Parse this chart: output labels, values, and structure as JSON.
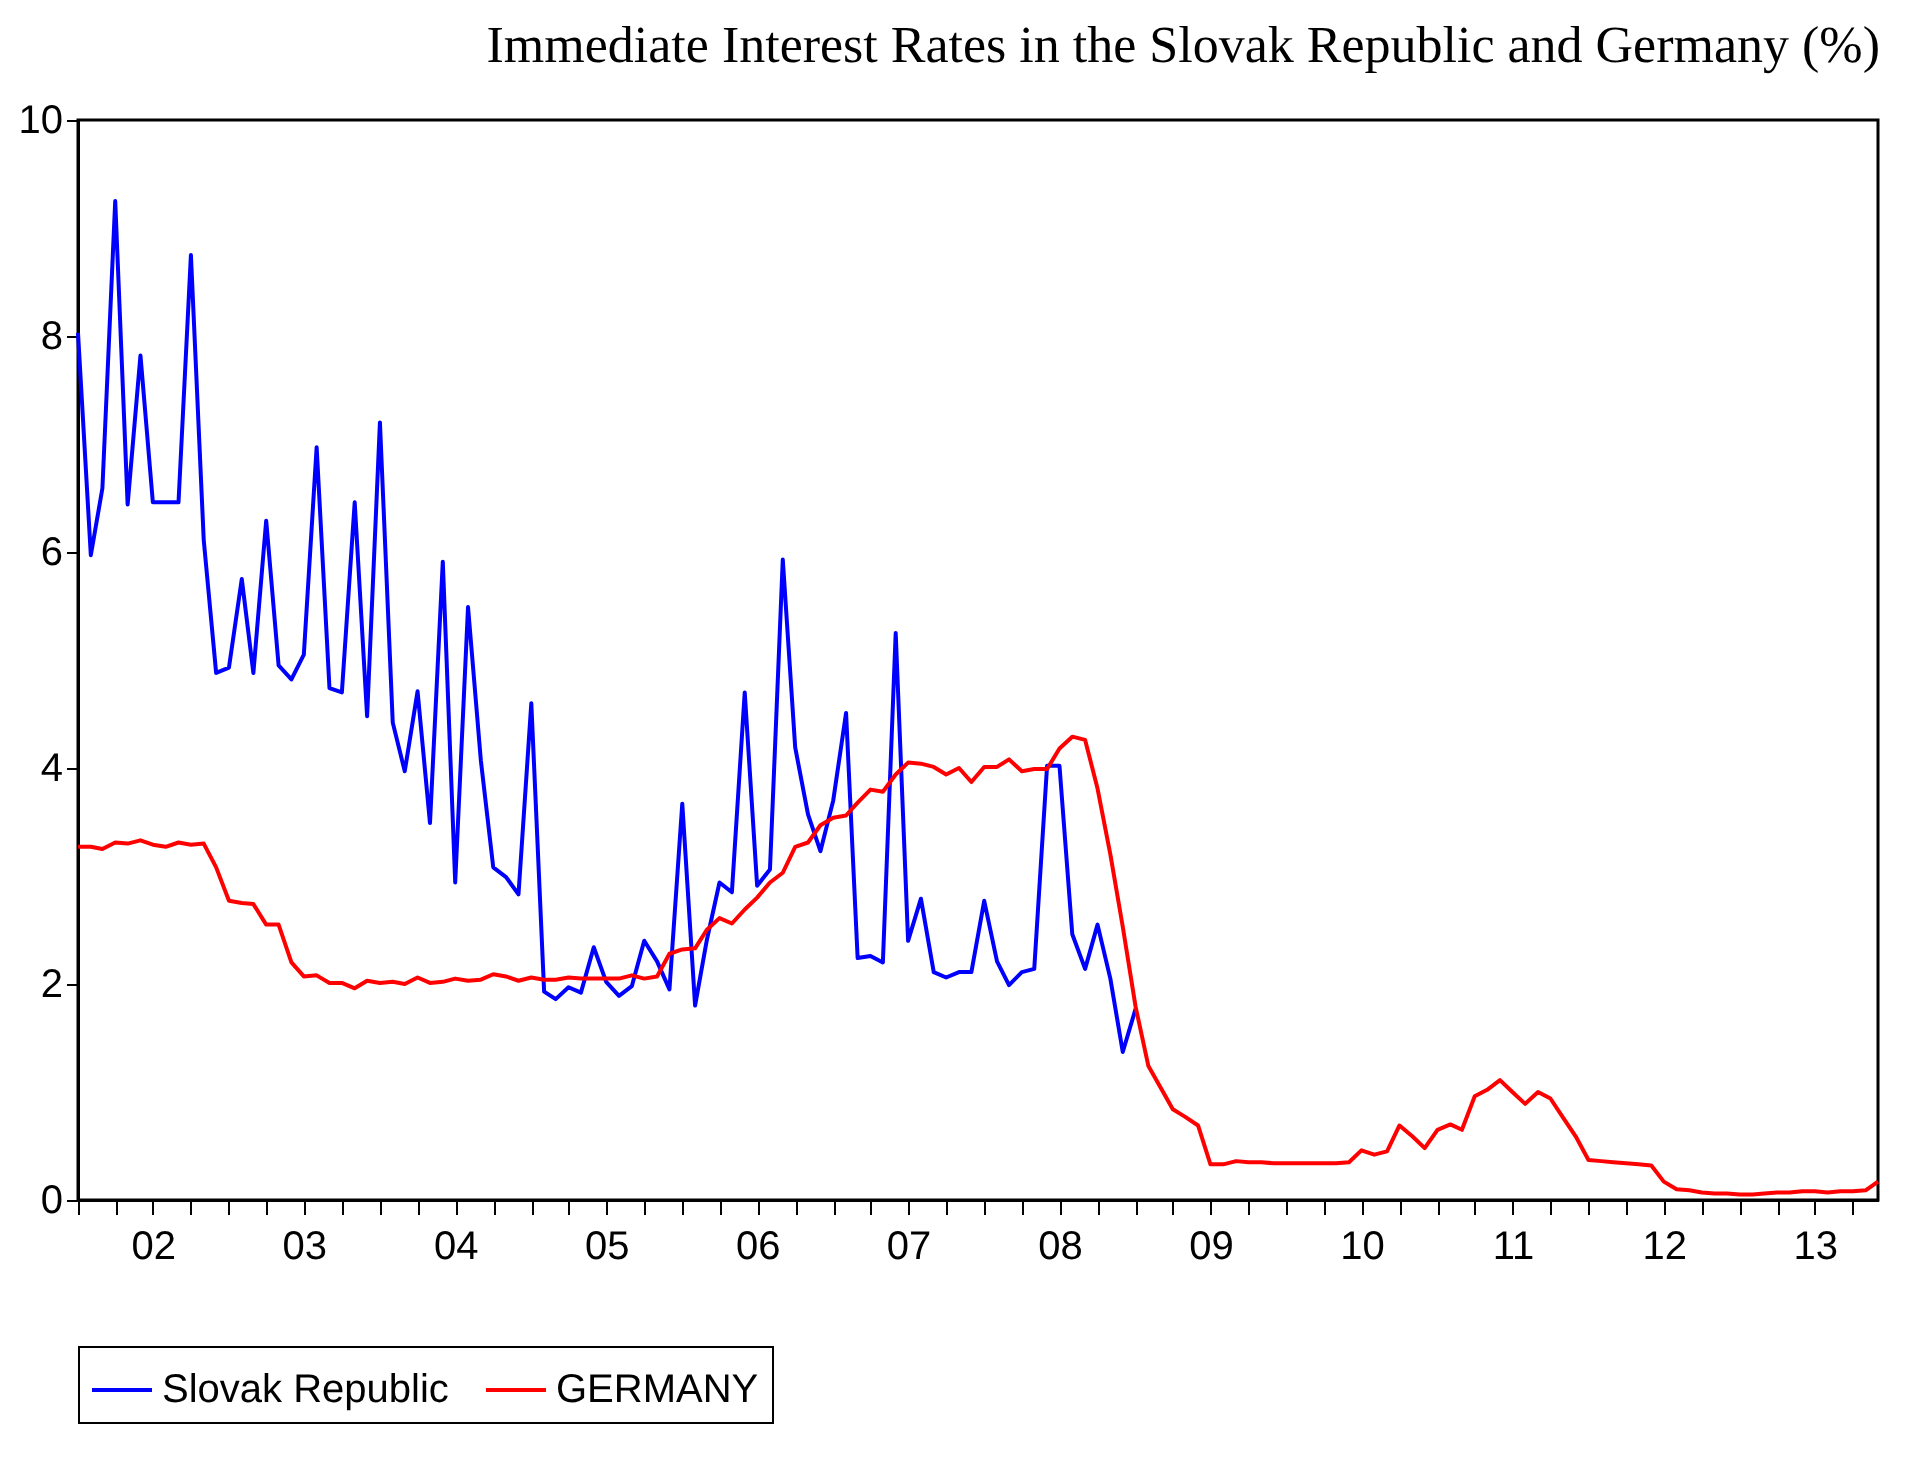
{
  "chart_data": {
    "type": "line",
    "title": "Immediate Interest Rates in the Slovak Republic and Germany (%)",
    "x": [
      "2002-01",
      "2002-02",
      "2002-03",
      "2002-04",
      "2002-05",
      "2002-06",
      "2002-07",
      "2002-08",
      "2002-09",
      "2002-10",
      "2002-11",
      "2002-12",
      "2003-01",
      "2003-02",
      "2003-03",
      "2003-04",
      "2003-05",
      "2003-06",
      "2003-07",
      "2003-08",
      "2003-09",
      "2003-10",
      "2003-11",
      "2003-12",
      "2004-01",
      "2004-02",
      "2004-03",
      "2004-04",
      "2004-05",
      "2004-06",
      "2004-07",
      "2004-08",
      "2004-09",
      "2004-10",
      "2004-11",
      "2004-12",
      "2005-01",
      "2005-02",
      "2005-03",
      "2005-04",
      "2005-05",
      "2005-06",
      "2005-07",
      "2005-08",
      "2005-09",
      "2005-10",
      "2005-11",
      "2005-12",
      "2006-01",
      "2006-02",
      "2006-03",
      "2006-04",
      "2006-05",
      "2006-06",
      "2006-07",
      "2006-08",
      "2006-09",
      "2006-10",
      "2006-11",
      "2006-12",
      "2007-01",
      "2007-02",
      "2007-03",
      "2007-04",
      "2007-05",
      "2007-06",
      "2007-07",
      "2007-08",
      "2007-09",
      "2007-10",
      "2007-11",
      "2007-12",
      "2008-01",
      "2008-02",
      "2008-03",
      "2008-04",
      "2008-05",
      "2008-06",
      "2008-07",
      "2008-08",
      "2008-09",
      "2008-10",
      "2008-11",
      "2008-12",
      "2009-01",
      "2009-02",
      "2009-03",
      "2009-04",
      "2009-05",
      "2009-06",
      "2009-07",
      "2009-08",
      "2009-09",
      "2009-10",
      "2009-11",
      "2009-12",
      "2010-01",
      "2010-02",
      "2010-03",
      "2010-04",
      "2010-05",
      "2010-06",
      "2010-07",
      "2010-08",
      "2010-09",
      "2010-10",
      "2010-11",
      "2010-12",
      "2011-01",
      "2011-02",
      "2011-03",
      "2011-04",
      "2011-05",
      "2011-06",
      "2011-07",
      "2011-08",
      "2011-09",
      "2011-10",
      "2011-11",
      "2011-12",
      "2012-01",
      "2012-02",
      "2012-03",
      "2012-04",
      "2012-05",
      "2012-06",
      "2012-07",
      "2012-08",
      "2012-09",
      "2012-10",
      "2012-11",
      "2012-12",
      "2013-01",
      "2013-02",
      "2013-03",
      "2013-04",
      "2013-05",
      "2013-06",
      "2013-07",
      "2013-08",
      "2013-09",
      "2013-10",
      "2013-11",
      "2013-12"
    ],
    "series": [
      {
        "name": "Slovak Republic",
        "color": "#0000ff",
        "values": [
          8.03,
          5.97,
          6.59,
          9.25,
          6.44,
          7.82,
          6.46,
          6.46,
          6.46,
          8.75,
          6.11,
          4.88,
          4.93,
          5.75,
          4.88,
          6.29,
          4.95,
          4.82,
          5.05,
          6.97,
          4.74,
          4.7,
          6.46,
          4.48,
          7.2,
          4.42,
          3.97,
          4.71,
          3.49,
          5.91,
          2.94,
          5.49,
          4.07,
          3.08,
          2.99,
          2.83,
          4.6,
          1.93,
          1.86,
          1.97,
          1.92,
          2.34,
          2.02,
          1.89,
          1.98,
          2.4,
          2.21,
          1.95,
          3.67,
          1.8,
          2.4,
          2.94,
          2.85,
          4.7,
          2.91,
          3.06,
          5.93,
          4.19,
          3.57,
          3.23,
          3.7,
          4.51,
          2.24,
          2.26,
          2.2,
          5.25,
          2.4,
          2.79,
          2.11,
          2.06,
          2.11,
          2.11,
          2.77,
          2.21,
          1.99,
          2.11,
          2.14,
          4.02,
          4.02,
          2.46,
          2.14,
          2.55,
          2.05,
          1.37,
          1.77,
          null,
          null,
          null,
          null,
          null,
          null,
          null,
          null,
          null,
          null,
          null,
          null,
          null,
          null,
          null,
          null,
          null,
          null,
          null,
          null,
          null,
          null,
          null,
          null,
          null,
          null,
          null,
          null,
          null,
          null,
          null,
          null,
          null,
          null,
          null,
          null,
          null,
          null,
          null,
          null,
          null,
          null,
          null,
          null,
          null,
          null,
          null,
          null,
          null,
          null,
          null,
          null,
          null,
          null,
          null,
          null,
          null,
          null,
          null
        ]
      },
      {
        "name": "GERMANY",
        "color": "#ff0000",
        "values": [
          3.27,
          3.27,
          3.25,
          3.31,
          3.3,
          3.33,
          3.29,
          3.27,
          3.31,
          3.29,
          3.3,
          3.08,
          2.77,
          2.75,
          2.74,
          2.55,
          2.55,
          2.2,
          2.07,
          2.08,
          2.01,
          2.01,
          1.96,
          2.03,
          2.01,
          2.02,
          2.0,
          2.06,
          2.01,
          2.02,
          2.05,
          2.03,
          2.04,
          2.09,
          2.07,
          2.03,
          2.06,
          2.04,
          2.04,
          2.06,
          2.05,
          2.05,
          2.05,
          2.05,
          2.08,
          2.05,
          2.07,
          2.28,
          2.32,
          2.33,
          2.5,
          2.61,
          2.56,
          2.69,
          2.8,
          2.94,
          3.03,
          3.27,
          3.31,
          3.47,
          3.54,
          3.56,
          3.68,
          3.8,
          3.78,
          3.94,
          4.05,
          4.04,
          4.01,
          3.94,
          4.0,
          3.87,
          4.01,
          4.01,
          4.08,
          3.97,
          3.99,
          3.99,
          4.18,
          4.29,
          4.26,
          3.81,
          3.2,
          2.53,
          1.79,
          1.24,
          1.05,
          0.84,
          0.77,
          0.69,
          0.33,
          0.33,
          0.36,
          0.35,
          0.35,
          0.34,
          0.34,
          0.34,
          0.34,
          0.34,
          0.34,
          0.35,
          0.46,
          0.42,
          0.45,
          0.69,
          0.59,
          0.48,
          0.65,
          0.7,
          0.65,
          0.96,
          1.02,
          1.11,
          1.0,
          0.89,
          1.0,
          0.94,
          0.76,
          0.59,
          0.37,
          0.36,
          0.35,
          0.34,
          0.33,
          0.32,
          0.17,
          0.1,
          0.09,
          0.07,
          0.06,
          0.06,
          0.05,
          0.05,
          0.06,
          0.07,
          0.07,
          0.08,
          0.08,
          0.07,
          0.08,
          0.08,
          0.09,
          0.17
        ]
      }
    ],
    "xlim": [
      "2002-01",
      "2013-12"
    ],
    "xticks": [
      {
        "value": "2002-01",
        "label": null
      },
      {
        "value": "2002-04",
        "label": null
      },
      {
        "value": "2002-07",
        "label": "02"
      },
      {
        "value": "2002-10",
        "label": null
      },
      {
        "value": "2003-01",
        "label": null
      },
      {
        "value": "2003-04",
        "label": null
      },
      {
        "value": "2003-07",
        "label": "03"
      },
      {
        "value": "2003-10",
        "label": null
      },
      {
        "value": "2004-01",
        "label": null
      },
      {
        "value": "2004-04",
        "label": null
      },
      {
        "value": "2004-07",
        "label": "04"
      },
      {
        "value": "2004-10",
        "label": null
      },
      {
        "value": "2005-01",
        "label": null
      },
      {
        "value": "2005-04",
        "label": null
      },
      {
        "value": "2005-07",
        "label": "05"
      },
      {
        "value": "2005-10",
        "label": null
      },
      {
        "value": "2006-01",
        "label": null
      },
      {
        "value": "2006-04",
        "label": null
      },
      {
        "value": "2006-07",
        "label": "06"
      },
      {
        "value": "2006-10",
        "label": null
      },
      {
        "value": "2007-01",
        "label": null
      },
      {
        "value": "2007-04",
        "label": null
      },
      {
        "value": "2007-07",
        "label": "07"
      },
      {
        "value": "2007-10",
        "label": null
      },
      {
        "value": "2008-01",
        "label": null
      },
      {
        "value": "2008-04",
        "label": null
      },
      {
        "value": "2008-07",
        "label": "08"
      },
      {
        "value": "2008-10",
        "label": null
      },
      {
        "value": "2009-01",
        "label": null
      },
      {
        "value": "2009-04",
        "label": null
      },
      {
        "value": "2009-07",
        "label": "09"
      },
      {
        "value": "2009-10",
        "label": null
      },
      {
        "value": "2010-01",
        "label": null
      },
      {
        "value": "2010-04",
        "label": null
      },
      {
        "value": "2010-07",
        "label": "10"
      },
      {
        "value": "2010-10",
        "label": null
      },
      {
        "value": "2011-01",
        "label": null
      },
      {
        "value": "2011-04",
        "label": null
      },
      {
        "value": "2011-07",
        "label": "11"
      },
      {
        "value": "2011-10",
        "label": null
      },
      {
        "value": "2012-01",
        "label": null
      },
      {
        "value": "2012-04",
        "label": null
      },
      {
        "value": "2012-07",
        "label": "12"
      },
      {
        "value": "2012-10",
        "label": null
      },
      {
        "value": "2013-01",
        "label": null
      },
      {
        "value": "2013-04",
        "label": null
      },
      {
        "value": "2013-07",
        "label": "13"
      },
      {
        "value": "2013-10",
        "label": null
      }
    ],
    "ylim": [
      0,
      10
    ],
    "yticks": [
      0,
      2,
      4,
      6,
      8,
      10
    ],
    "grid": false,
    "legend": "bottom",
    "marker": "none",
    "line_style": "solid"
  }
}
